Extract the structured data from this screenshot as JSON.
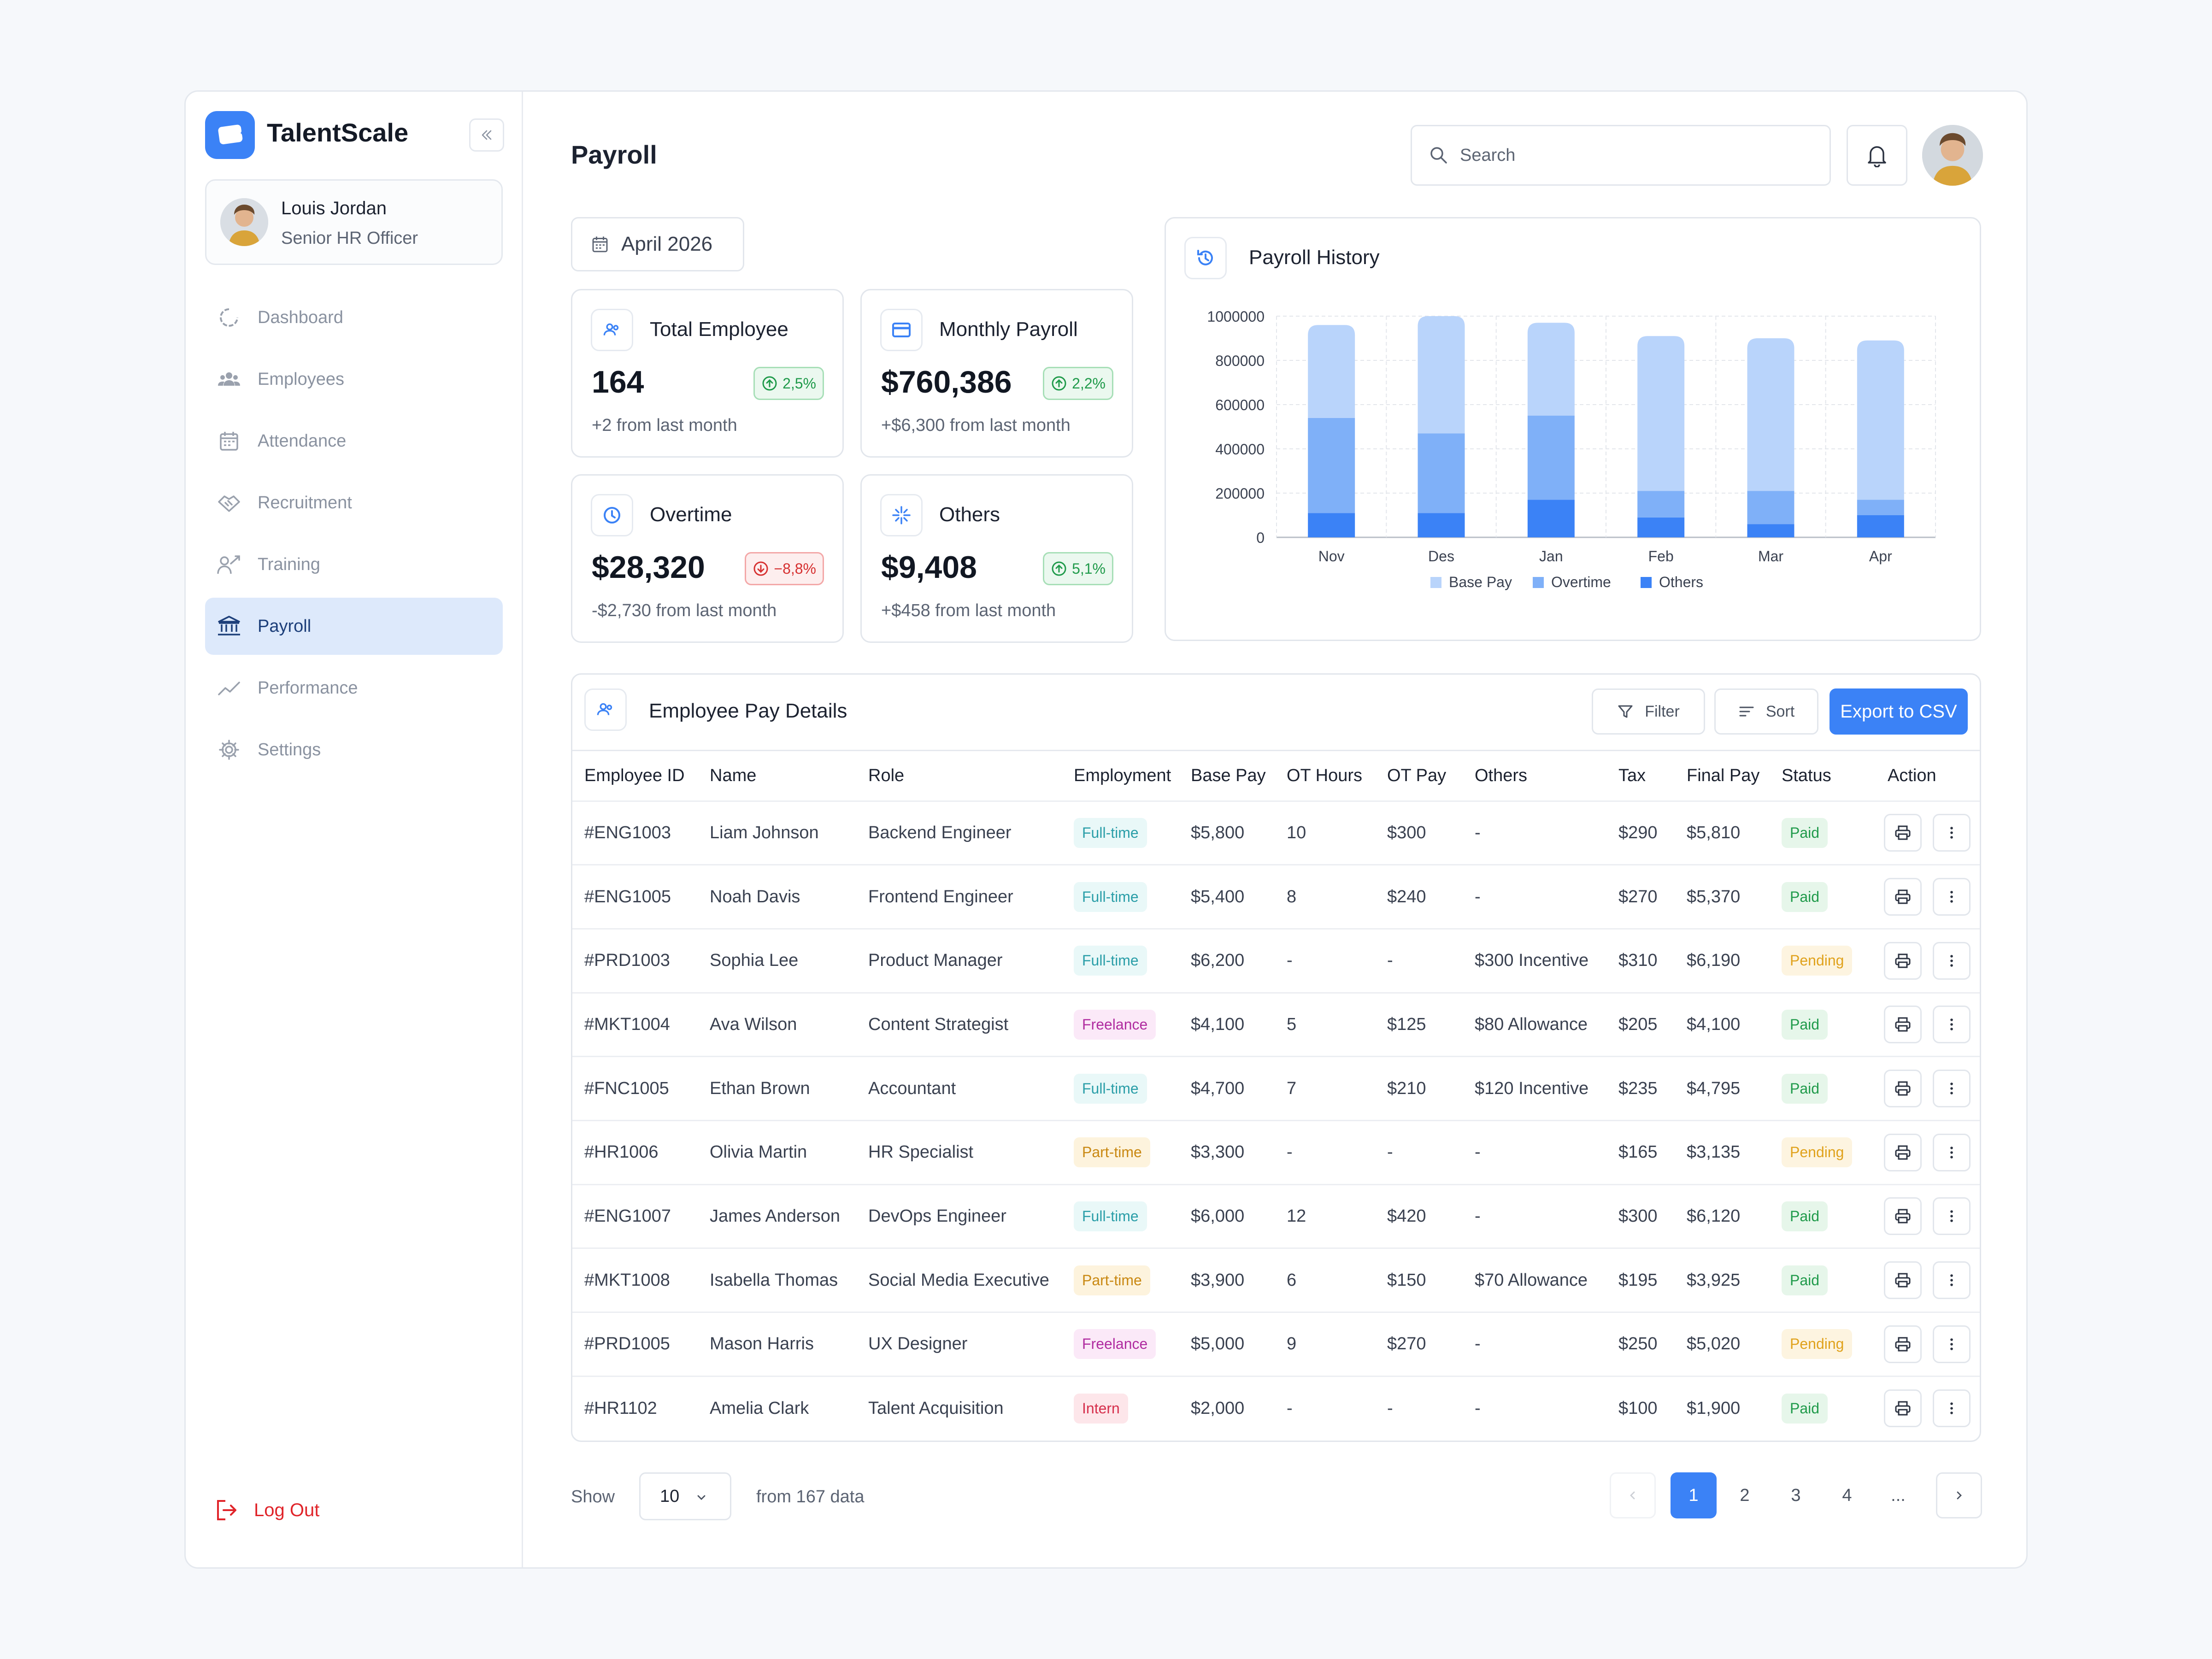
{
  "app": {
    "brand": "TalentScale"
  },
  "user": {
    "name": "Louis Jordan",
    "role": "Senior HR Officer"
  },
  "nav": [
    {
      "label": "Dashboard",
      "icon": "dashboard-icon"
    },
    {
      "label": "Employees",
      "icon": "users-icon"
    },
    {
      "label": "Attendance",
      "icon": "calendar-icon"
    },
    {
      "label": "Recruitment",
      "icon": "handshake-icon"
    },
    {
      "label": "Training",
      "icon": "training-icon"
    },
    {
      "label": "Payroll",
      "icon": "bank-icon",
      "active": true
    },
    {
      "label": "Performance",
      "icon": "trend-icon"
    },
    {
      "label": "Settings",
      "icon": "gear-icon"
    }
  ],
  "logout": "Log Out",
  "header": {
    "title": "Payroll",
    "search_placeholder": "Search"
  },
  "date": "April 2026",
  "stats": [
    {
      "title": "Total Employee",
      "value": "164",
      "change": "2,5%",
      "direction": "up",
      "sub": "+2 from last month"
    },
    {
      "title": "Monthly Payroll",
      "value": "$760,386",
      "change": "2,2%",
      "direction": "up",
      "sub": "+$6,300 from last month"
    },
    {
      "title": "Overtime",
      "value": "$28,320",
      "change": "−8,8%",
      "direction": "down",
      "sub": "-$2,730 from last month"
    },
    {
      "title": "Others",
      "value": "$9,408",
      "change": "5,1%",
      "direction": "up",
      "sub": "+$458 from last month"
    }
  ],
  "chart_title": "Payroll History",
  "chart_data": {
    "type": "bar",
    "stacked": true,
    "categories": [
      "Nov",
      "Des",
      "Jan",
      "Feb",
      "Mar",
      "Apr"
    ],
    "yticks": [
      "0",
      "200000",
      "400000",
      "600000",
      "800000",
      "1000000"
    ],
    "ylim": [
      0,
      1000000
    ],
    "series": [
      {
        "name": "Others",
        "color": "#3b82f6",
        "values": [
          110000,
          110000,
          170000,
          90000,
          60000,
          100000
        ]
      },
      {
        "name": "Overtime",
        "color": "#7fb0f8",
        "values": [
          430000,
          360000,
          380000,
          120000,
          150000,
          70000
        ]
      },
      {
        "name": "Base Pay",
        "color": "#b9d4fb",
        "values": [
          420000,
          530000,
          420000,
          700000,
          690000,
          720000
        ]
      }
    ],
    "legend": [
      "Base Pay",
      "Overtime",
      "Others"
    ],
    "legend_position": "bottom",
    "grid": true
  },
  "table": {
    "title": "Employee Pay Details",
    "filter": "Filter",
    "sort": "Sort",
    "export": "Export to CSV",
    "columns": [
      "Employee ID",
      "Name",
      "Role",
      "Employment",
      "Base Pay",
      "OT Hours",
      "OT Pay",
      "Others",
      "Tax",
      "Final Pay",
      "Status",
      "Action"
    ],
    "rows": [
      {
        "id": "#ENG1003",
        "name": "Liam Johnson",
        "role": "Backend Engineer",
        "employment": "Full-time",
        "base": "$5,800",
        "ot_hours": "10",
        "ot_pay": "$300",
        "others": "-",
        "tax": "$290",
        "final": "$5,810",
        "status": "Paid"
      },
      {
        "id": "#ENG1005",
        "name": "Noah Davis",
        "role": "Frontend Engineer",
        "employment": "Full-time",
        "base": "$5,400",
        "ot_hours": "8",
        "ot_pay": "$240",
        "others": "-",
        "tax": "$270",
        "final": "$5,370",
        "status": "Paid"
      },
      {
        "id": "#PRD1003",
        "name": "Sophia Lee",
        "role": "Product Manager",
        "employment": "Full-time",
        "base": "$6,200",
        "ot_hours": "-",
        "ot_pay": "-",
        "others": "$300 Incentive",
        "tax": "$310",
        "final": "$6,190",
        "status": "Pending"
      },
      {
        "id": "#MKT1004",
        "name": "Ava Wilson",
        "role": "Content Strategist",
        "employment": "Freelance",
        "base": "$4,100",
        "ot_hours": "5",
        "ot_pay": "$125",
        "others": "$80 Allowance",
        "tax": "$205",
        "final": "$4,100",
        "status": "Paid"
      },
      {
        "id": "#FNC1005",
        "name": "Ethan Brown",
        "role": "Accountant",
        "employment": "Full-time",
        "base": "$4,700",
        "ot_hours": "7",
        "ot_pay": "$210",
        "others": "$120 Incentive",
        "tax": "$235",
        "final": "$4,795",
        "status": "Paid"
      },
      {
        "id": "#HR1006",
        "name": "Olivia Martin",
        "role": "HR Specialist",
        "employment": "Part-time",
        "base": "$3,300",
        "ot_hours": "-",
        "ot_pay": "-",
        "others": "-",
        "tax": "$165",
        "final": "$3,135",
        "status": "Pending"
      },
      {
        "id": "#ENG1007",
        "name": "James Anderson",
        "role": "DevOps Engineer",
        "employment": "Full-time",
        "base": "$6,000",
        "ot_hours": "12",
        "ot_pay": "$420",
        "others": "-",
        "tax": "$300",
        "final": "$6,120",
        "status": "Paid"
      },
      {
        "id": "#MKT1008",
        "name": "Isabella Thomas",
        "role": "Social Media Executive",
        "employment": "Part-time",
        "base": "$3,900",
        "ot_hours": "6",
        "ot_pay": "$150",
        "others": "$70 Allowance",
        "tax": "$195",
        "final": "$3,925",
        "status": "Paid"
      },
      {
        "id": "#PRD1005",
        "name": "Mason Harris",
        "role": "UX Designer",
        "employment": "Freelance",
        "base": "$5,000",
        "ot_hours": "9",
        "ot_pay": "$270",
        "others": "-",
        "tax": "$250",
        "final": "$5,020",
        "status": "Pending"
      },
      {
        "id": "#HR1102",
        "name": "Amelia Clark",
        "role": "Talent Acquisition",
        "employment": "Intern",
        "base": "$2,000",
        "ot_hours": "-",
        "ot_pay": "-",
        "others": "-",
        "tax": "$100",
        "final": "$1,900",
        "status": "Paid"
      }
    ]
  },
  "footer": {
    "show_label": "Show",
    "page_size": "10",
    "from_text": "from 167 data",
    "pages": [
      "1",
      "2",
      "3",
      "4",
      "..."
    ],
    "current_page": "1"
  }
}
